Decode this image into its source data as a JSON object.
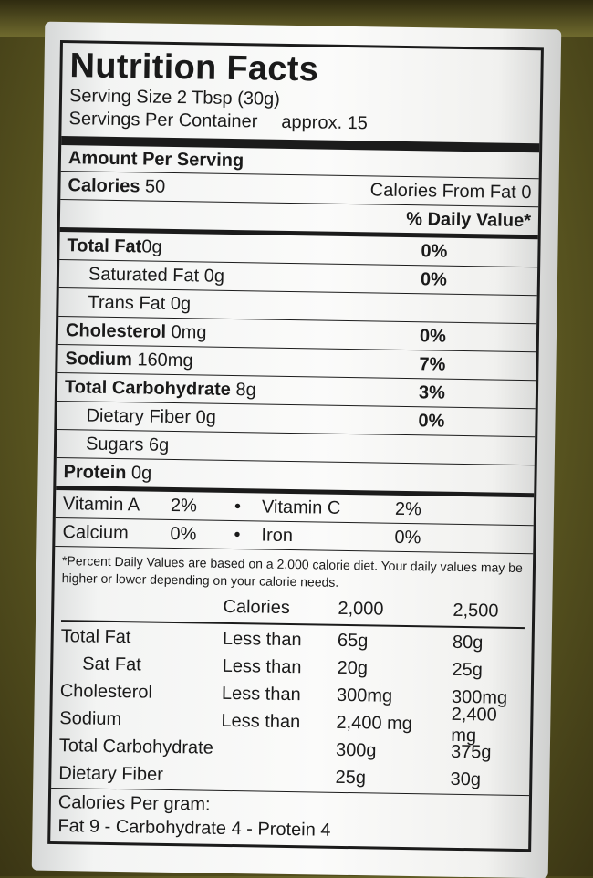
{
  "title": "Nutrition Facts",
  "serving_size": "Serving Size 2 Tbsp (30g)",
  "servings_label": "Servings Per Container",
  "servings_value": "approx. 15",
  "amount_header": "Amount Per Serving",
  "calories_label": "Calories",
  "calories_value": "50",
  "calories_from_fat": "Calories From Fat 0",
  "daily_value_header": "% Daily Value*",
  "nutrients": [
    {
      "label": "Total Fat",
      "amount": "0g",
      "pct": "0%"
    },
    {
      "label": "Saturated Fat",
      "amount": "0g",
      "pct": "0%"
    },
    {
      "label": "Trans Fat",
      "amount": "0g",
      "pct": ""
    },
    {
      "label": "Cholesterol",
      "amount": "0mg",
      "pct": "0%"
    },
    {
      "label": "Sodium",
      "amount": "160mg",
      "pct": "7%"
    },
    {
      "label": "Total Carbohydrate",
      "amount": "8g",
      "pct": "3%"
    },
    {
      "label": "Dietary Fiber",
      "amount": "0g",
      "pct": "0%"
    },
    {
      "label": "Sugars",
      "amount": "6g",
      "pct": ""
    },
    {
      "label": "Protein",
      "amount": "0g",
      "pct": ""
    }
  ],
  "vitamins": [
    {
      "a_label": "Vitamin A",
      "a_pct": "2%",
      "dot": "•",
      "b_label": "Vitamin C",
      "b_pct": "2%"
    },
    {
      "a_label": "Calcium",
      "a_pct": "0%",
      "dot": "•",
      "b_label": "Iron",
      "b_pct": "0%"
    }
  ],
  "footnote": "*Percent Daily Values are based on a 2,000 calorie diet. Your daily values may be higher or lower depending on your calorie needs.",
  "dv_header": {
    "col2": "Calories",
    "col3": "2,000",
    "col4": "2,500"
  },
  "dv_rows": [
    {
      "name": "Total Fat",
      "limit": "Less than",
      "v2000": "65g",
      "v2500": "80g"
    },
    {
      "name": "Sat Fat",
      "limit": "Less than",
      "v2000": "20g",
      "v2500": "25g"
    },
    {
      "name": "Cholesterol",
      "limit": "Less than",
      "v2000": "300mg",
      "v2500": "300mg"
    },
    {
      "name": "Sodium",
      "limit": "Less than",
      "v2000": "2,400 mg",
      "v2500": "2,400 mg"
    },
    {
      "name": "Total Carbohydrate",
      "limit": "",
      "v2000": "300g",
      "v2500": "375g"
    },
    {
      "name": "Dietary Fiber",
      "limit": "",
      "v2000": "25g",
      "v2500": "30g"
    }
  ],
  "calories_per_gram_label": "Calories Per gram:",
  "calories_per_gram_values": "Fat 9 - Carbohydrate 4 - Protein 4"
}
